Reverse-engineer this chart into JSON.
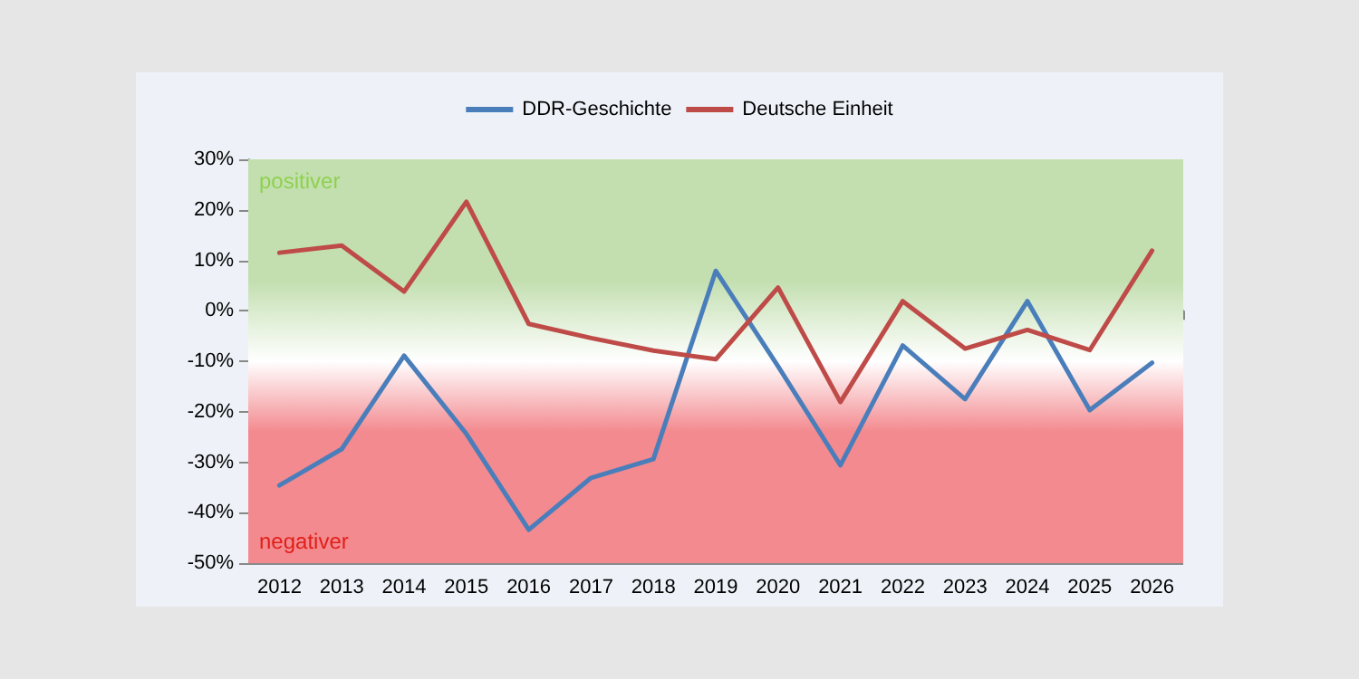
{
  "chart_data": {
    "type": "line",
    "categories": [
      "2012",
      "2013",
      "2014",
      "2015",
      "2016",
      "2017",
      "2018",
      "2019",
      "2020",
      "2021",
      "2022",
      "2023",
      "2024",
      "2025",
      "2026"
    ],
    "series": [
      {
        "name": "DDR-Geschichte",
        "color": "#4a7ebb",
        "values": [
          -34.6,
          -27.4,
          -8.9,
          -24.4,
          -43.4,
          -33.1,
          -29.4,
          7.9,
          -11,
          -30.6,
          -6.9,
          -17.5,
          1.9,
          -19.7,
          -10.3
        ]
      },
      {
        "name": "Deutsche Einheit",
        "color": "#be4b48",
        "values": [
          11.5,
          12.9,
          3.8,
          21.6,
          -2.6,
          -5.4,
          -7.9,
          -9.6,
          4.6,
          -18.1,
          1.9,
          -7.5,
          -3.8,
          -7.8,
          11.9
        ]
      }
    ],
    "ylim": [
      -50,
      30
    ],
    "yticks": [
      {
        "value": -50,
        "label": "-50%"
      },
      {
        "value": -40,
        "label": "-40%"
      },
      {
        "value": -30,
        "label": "-30%"
      },
      {
        "value": -20,
        "label": "-20%"
      },
      {
        "value": -10,
        "label": "-10%"
      },
      {
        "value": 0,
        "label": "0%"
      },
      {
        "value": 10,
        "label": "10%"
      },
      {
        "value": 20,
        "label": "20%"
      },
      {
        "value": 30,
        "label": "30%"
      }
    ],
    "bands": [
      {
        "axis": "y",
        "from": -10,
        "to": 30,
        "label": "positiver",
        "color": "#c3dfb0"
      },
      {
        "axis": "y",
        "from": -50,
        "to": -10,
        "label": "negativer",
        "color": "#f38a8f"
      }
    ],
    "grid": "y",
    "legend": "top",
    "marker": "none",
    "line_style": "solid"
  }
}
